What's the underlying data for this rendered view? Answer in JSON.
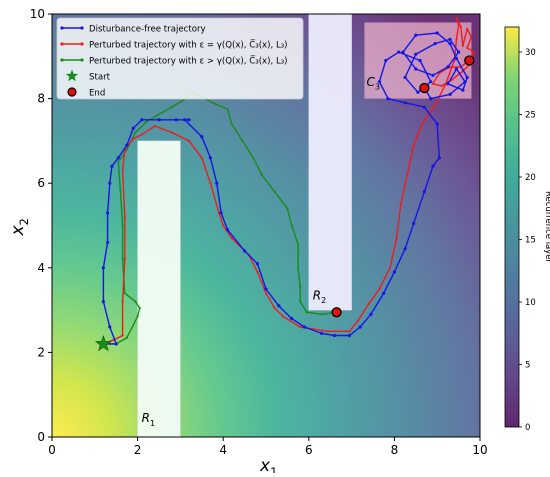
{
  "chart_data": {
    "type": "line",
    "title": "",
    "xlabel": "x",
    "xlabel_sub": "1",
    "ylabel": "x",
    "ylabel_sub": "2",
    "xlim": [
      0,
      10
    ],
    "ylim": [
      0,
      10
    ],
    "xticks": [
      "0",
      "2",
      "4",
      "6",
      "8",
      "10"
    ],
    "yticks": [
      "0",
      "2",
      "4",
      "6",
      "8",
      "10"
    ],
    "grid": false,
    "legend_position": "top-left",
    "background": {
      "type": "heatmap",
      "colormap": "viridis",
      "description_values": "recurrence layer field, high near lower-left, low near upper-right",
      "colorbar": {
        "label": "Recurrence layer",
        "range": [
          0,
          32
        ],
        "ticks": [
          "0",
          "5",
          "10",
          "15",
          "20",
          "25",
          "30"
        ]
      }
    },
    "regions": [
      {
        "name": "R",
        "sub": "1",
        "x": [
          2,
          3
        ],
        "y": [
          0,
          7
        ],
        "fill": "#f1fcf3"
      },
      {
        "name": "R",
        "sub": "2",
        "x": [
          6,
          7
        ],
        "y": [
          3,
          10
        ],
        "fill": "#ebebfb"
      },
      {
        "name": "C",
        "sub": "3",
        "x": [
          7.3,
          9.8
        ],
        "y": [
          8,
          9.8
        ],
        "fill": "#f4b8cf"
      }
    ],
    "legend": [
      {
        "label": "Disturbance-free trajectory",
        "color": "#1515e8",
        "marker": "dot-line"
      },
      {
        "label": "Perturbed trajectory with ε = γ(Q(x), C̅₃(x), L₃)",
        "color": "#ee1c1c",
        "marker": "line"
      },
      {
        "label": "Perturbed trajectory with ε > γ(Q(x), C̅₃(x), L₃)",
        "color": "#1a8c1a",
        "marker": "line"
      },
      {
        "label": "Start",
        "color": "#1a8c1a",
        "marker": "star"
      },
      {
        "label": "End",
        "color": "#e01010",
        "marker": "circle"
      }
    ],
    "start": [
      1.2,
      2.2
    ],
    "ends": [
      [
        6.65,
        2.95
      ],
      [
        8.7,
        8.25
      ],
      [
        9.75,
        8.9
      ]
    ],
    "series": [
      {
        "name": "Disturbance-free trajectory",
        "color": "#1515e8",
        "points": [
          [
            1.2,
            2.2
          ],
          [
            1.5,
            2.2
          ],
          [
            1.35,
            2.6
          ],
          [
            1.2,
            3.2
          ],
          [
            1.2,
            4.0
          ],
          [
            1.3,
            4.6
          ],
          [
            1.3,
            5.3
          ],
          [
            1.35,
            6.0
          ],
          [
            1.4,
            6.4
          ],
          [
            1.55,
            6.6
          ],
          [
            1.75,
            6.9
          ],
          [
            1.9,
            7.3
          ],
          [
            2.1,
            7.5
          ],
          [
            2.5,
            7.5
          ],
          [
            2.9,
            7.5
          ],
          [
            3.2,
            7.5
          ],
          [
            3.1,
            7.5
          ],
          [
            3.5,
            7.1
          ],
          [
            3.7,
            6.6
          ],
          [
            3.85,
            6.0
          ],
          [
            3.95,
            5.3
          ],
          [
            4.1,
            4.9
          ],
          [
            4.5,
            4.4
          ],
          [
            4.8,
            4.1
          ],
          [
            5.0,
            3.5
          ],
          [
            5.3,
            3.1
          ],
          [
            5.6,
            2.8
          ],
          [
            5.9,
            2.6
          ],
          [
            6.3,
            2.45
          ],
          [
            6.6,
            2.4
          ],
          [
            6.95,
            2.4
          ],
          [
            7.2,
            2.6
          ],
          [
            7.45,
            2.9
          ],
          [
            7.75,
            3.4
          ],
          [
            8.0,
            3.9
          ],
          [
            8.25,
            4.45
          ],
          [
            8.45,
            5.05
          ],
          [
            8.7,
            5.8
          ],
          [
            8.9,
            6.4
          ],
          [
            9.05,
            6.6
          ],
          [
            9.0,
            7.4
          ],
          [
            8.7,
            7.8
          ],
          [
            8.25,
            7.9
          ],
          [
            7.85,
            8.0
          ],
          [
            7.65,
            8.4
          ],
          [
            7.8,
            8.9
          ],
          [
            8.1,
            9.1
          ],
          [
            8.6,
            8.9
          ],
          [
            8.85,
            8.4
          ],
          [
            8.55,
            8.15
          ],
          [
            8.25,
            8.5
          ],
          [
            8.5,
            9.05
          ],
          [
            8.95,
            9.3
          ],
          [
            9.3,
            9.4
          ],
          [
            9.5,
            9.1
          ],
          [
            9.25,
            8.75
          ],
          [
            8.9,
            8.55
          ],
          [
            8.5,
            8.7
          ],
          [
            8.2,
            9.1
          ],
          [
            8.5,
            9.5
          ],
          [
            9.0,
            9.55
          ],
          [
            9.3,
            9.3
          ],
          [
            9.45,
            8.95
          ],
          [
            9.7,
            8.5
          ],
          [
            9.6,
            8.2
          ],
          [
            9.25,
            8.35
          ],
          [
            9.45,
            8.7
          ],
          [
            9.65,
            8.4
          ],
          [
            9.3,
            8.1
          ],
          [
            8.85,
            8.0
          ],
          [
            8.7,
            8.25
          ]
        ]
      },
      {
        "name": "Perturbed trajectory with ε = γ(Q(x), C̅₃(x), L₃)",
        "color": "#ee1c1c",
        "points": [
          [
            1.2,
            2.2
          ],
          [
            1.45,
            2.3
          ],
          [
            1.65,
            2.4
          ],
          [
            1.65,
            3.2
          ],
          [
            1.7,
            4.2
          ],
          [
            1.7,
            5.2
          ],
          [
            1.65,
            6.3
          ],
          [
            1.7,
            6.8
          ],
          [
            1.9,
            7.05
          ],
          [
            2.1,
            7.15
          ],
          [
            2.4,
            7.35
          ],
          [
            2.8,
            7.2
          ],
          [
            3.2,
            7.0
          ],
          [
            3.5,
            6.6
          ],
          [
            3.7,
            6.0
          ],
          [
            3.9,
            5.3
          ],
          [
            4.0,
            5.0
          ],
          [
            4.2,
            4.7
          ],
          [
            4.6,
            4.3
          ],
          [
            4.8,
            3.9
          ],
          [
            5.0,
            3.4
          ],
          [
            5.2,
            3.05
          ],
          [
            5.4,
            2.85
          ],
          [
            5.8,
            2.6
          ],
          [
            6.1,
            2.55
          ],
          [
            6.45,
            2.5
          ],
          [
            6.95,
            2.5
          ],
          [
            7.15,
            2.75
          ],
          [
            7.4,
            3.15
          ],
          [
            7.65,
            3.5
          ],
          [
            7.9,
            4.0
          ],
          [
            8.05,
            4.7
          ],
          [
            8.15,
            5.5
          ],
          [
            8.3,
            6.2
          ],
          [
            8.45,
            6.9
          ],
          [
            8.65,
            7.4
          ],
          [
            8.95,
            7.85
          ],
          [
            9.2,
            8.35
          ],
          [
            9.4,
            8.9
          ],
          [
            9.45,
            9.4
          ],
          [
            9.5,
            9.75
          ],
          [
            9.45,
            9.9
          ],
          [
            9.55,
            9.7
          ],
          [
            9.6,
            9.25
          ],
          [
            9.7,
            9.65
          ],
          [
            9.8,
            9.45
          ],
          [
            9.7,
            9.2
          ],
          [
            9.85,
            9.1
          ],
          [
            9.8,
            8.85
          ],
          [
            9.6,
            8.65
          ],
          [
            9.35,
            8.45
          ],
          [
            9.1,
            8.3
          ],
          [
            8.9,
            8.35
          ],
          [
            9.05,
            8.6
          ],
          [
            9.3,
            8.75
          ],
          [
            9.55,
            8.75
          ],
          [
            9.75,
            8.9
          ]
        ]
      },
      {
        "name": "Perturbed trajectory with ε > γ(Q(x), C̅₃(x), L₃)",
        "color": "#1a8c1a",
        "points": [
          [
            1.2,
            2.2
          ],
          [
            1.5,
            2.2
          ],
          [
            1.75,
            2.35
          ],
          [
            2.0,
            2.85
          ],
          [
            2.05,
            3.05
          ],
          [
            1.95,
            3.2
          ],
          [
            1.7,
            3.4
          ],
          [
            1.65,
            4.2
          ],
          [
            1.65,
            5.0
          ],
          [
            1.6,
            5.8
          ],
          [
            1.55,
            6.5
          ],
          [
            1.75,
            6.8
          ],
          [
            1.95,
            7.2
          ],
          [
            2.2,
            7.45
          ],
          [
            2.45,
            7.6
          ],
          [
            2.8,
            7.8
          ],
          [
            3.05,
            7.95
          ],
          [
            3.3,
            8.15
          ],
          [
            3.5,
            8.05
          ],
          [
            3.75,
            7.9
          ],
          [
            4.1,
            7.75
          ],
          [
            4.2,
            7.4
          ],
          [
            4.45,
            7.0
          ],
          [
            4.7,
            6.6
          ],
          [
            4.9,
            6.2
          ],
          [
            5.2,
            5.8
          ],
          [
            5.5,
            5.4
          ],
          [
            5.6,
            5.0
          ],
          [
            5.75,
            4.55
          ],
          [
            5.75,
            4.0
          ],
          [
            5.8,
            3.55
          ],
          [
            5.8,
            3.2
          ],
          [
            5.95,
            2.95
          ],
          [
            6.3,
            2.9
          ],
          [
            6.65,
            2.95
          ]
        ]
      }
    ]
  }
}
